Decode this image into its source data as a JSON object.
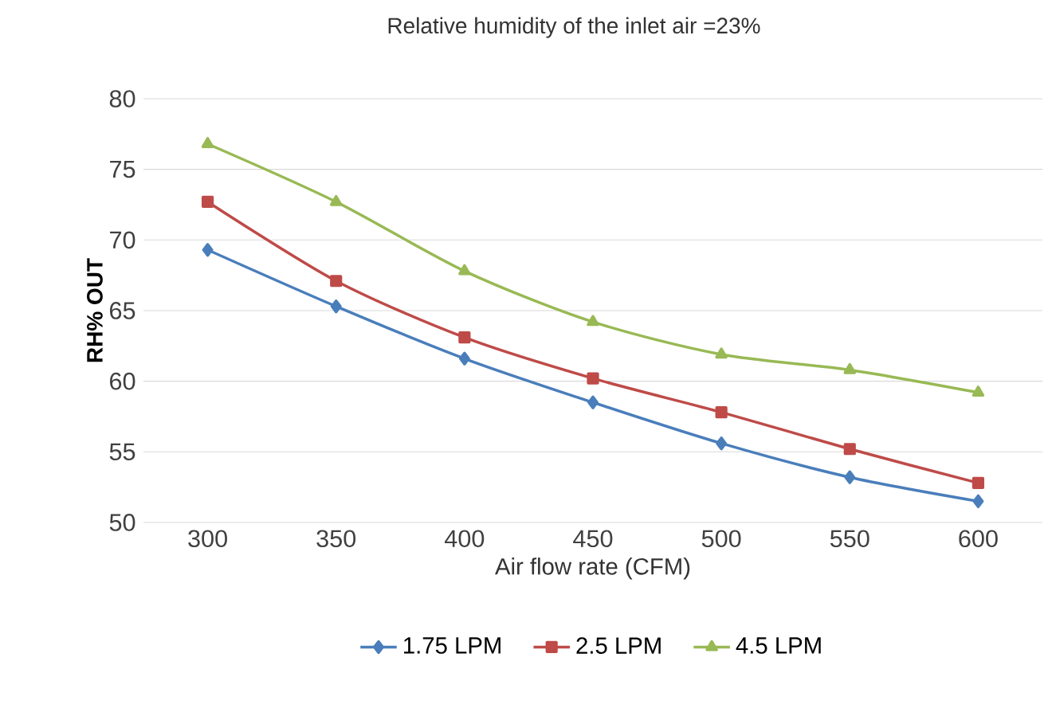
{
  "chart_data": {
    "type": "line",
    "title": "Relative humidity of the inlet air =23%",
    "xlabel": "Air flow rate (CFM)",
    "ylabel": "RH% OUT",
    "categories": [
      "300",
      "350",
      "400",
      "450",
      "500",
      "550",
      "600"
    ],
    "series": [
      {
        "name": "1.75 LPM",
        "color": "#4a7ebb",
        "marker": "diamond",
        "values": [
          69.3,
          65.3,
          61.6,
          58.5,
          55.6,
          53.2,
          51.5
        ]
      },
      {
        "name": "2.5 LPM",
        "color": "#be4b48",
        "marker": "square",
        "values": [
          72.7,
          67.1,
          63.1,
          60.2,
          57.8,
          55.2,
          52.8
        ]
      },
      {
        "name": "4.5 LPM",
        "color": "#98b954",
        "marker": "triangle",
        "values": [
          76.8,
          72.7,
          67.8,
          64.2,
          61.9,
          60.8,
          59.2
        ]
      }
    ],
    "ylim": [
      50,
      80
    ],
    "yticks": [
      50,
      55,
      60,
      65,
      70,
      75,
      80
    ],
    "grid": "y",
    "legend": "bottom",
    "line_style": "solid"
  }
}
